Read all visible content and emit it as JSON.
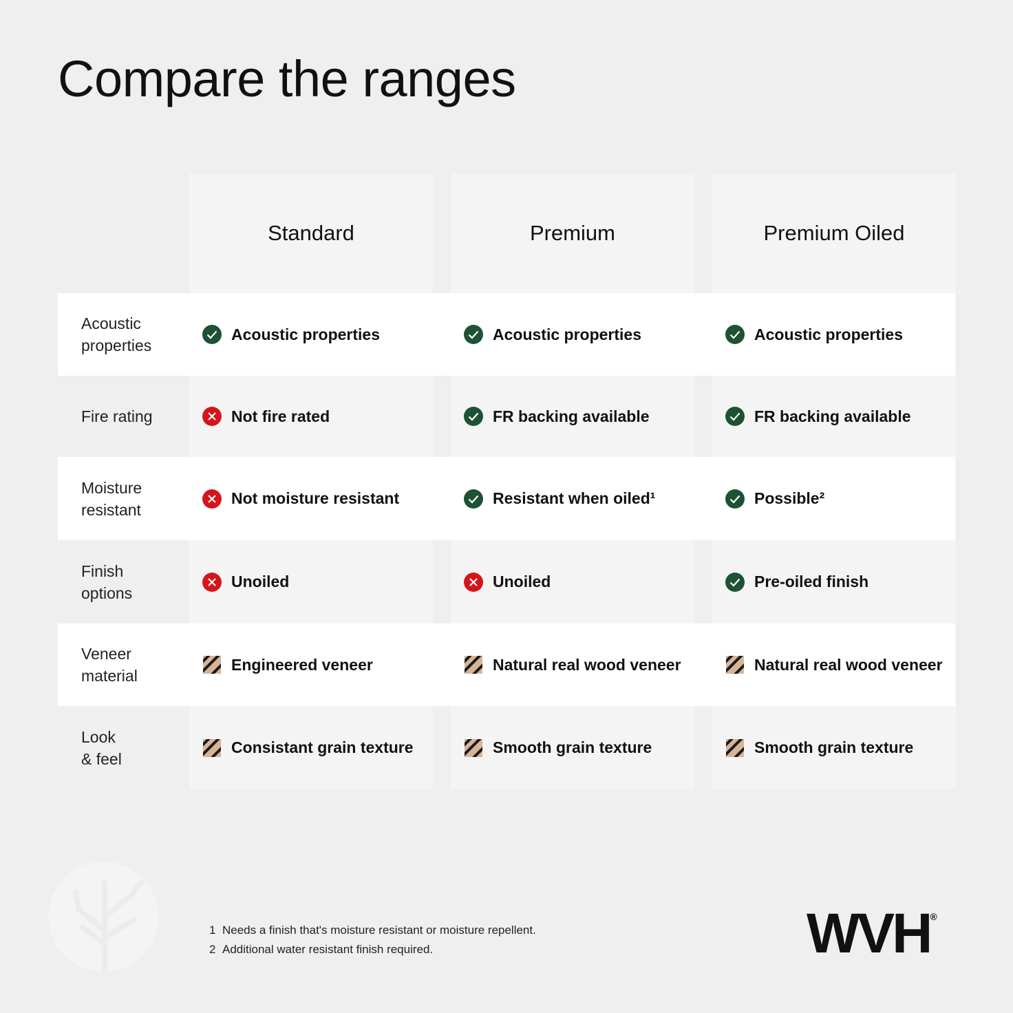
{
  "title": "Compare the ranges",
  "columns": [
    "Standard",
    "Premium",
    "Premium Oiled"
  ],
  "rows": [
    {
      "label": [
        "Acoustic",
        "properties"
      ],
      "cells": [
        {
          "status": "check",
          "text": "Acoustic properties"
        },
        {
          "status": "check",
          "text": "Acoustic properties"
        },
        {
          "status": "check",
          "text": "Acoustic properties"
        }
      ]
    },
    {
      "label": [
        "Fire rating"
      ],
      "cells": [
        {
          "status": "cross",
          "text": "Not fire rated"
        },
        {
          "status": "check",
          "text": "FR backing available"
        },
        {
          "status": "check",
          "text": "FR backing available"
        }
      ]
    },
    {
      "label": [
        "Moisture",
        "resistant"
      ],
      "cells": [
        {
          "status": "cross",
          "text": "Not moisture resistant"
        },
        {
          "status": "check",
          "text": "Resistant when oiled¹"
        },
        {
          "status": "check",
          "text": "Possible²"
        }
      ]
    },
    {
      "label": [
        "Finish",
        "options"
      ],
      "cells": [
        {
          "status": "cross",
          "text": "Unoiled"
        },
        {
          "status": "cross",
          "text": "Unoiled"
        },
        {
          "status": "check",
          "text": "Pre-oiled finish"
        }
      ]
    },
    {
      "label": [
        "Veneer",
        "material"
      ],
      "cells": [
        {
          "status": "veneer",
          "text": "Engineered veneer"
        },
        {
          "status": "veneer",
          "text": "Natural real wood veneer"
        },
        {
          "status": "veneer",
          "text": "Natural real wood veneer"
        }
      ]
    },
    {
      "label": [
        "Look",
        "& feel"
      ],
      "cells": [
        {
          "status": "veneer",
          "text": "Consistant grain texture"
        },
        {
          "status": "veneer",
          "text": "Smooth grain texture"
        },
        {
          "status": "veneer",
          "text": "Smooth grain texture"
        }
      ]
    }
  ],
  "footnotes": [
    {
      "number": "1",
      "text": "Needs a finish that's moisture resistant or moisture repellent."
    },
    {
      "number": "2",
      "text": "Additional water resistant finish required."
    }
  ],
  "logo": {
    "text": "WVH",
    "mark": "®"
  }
}
